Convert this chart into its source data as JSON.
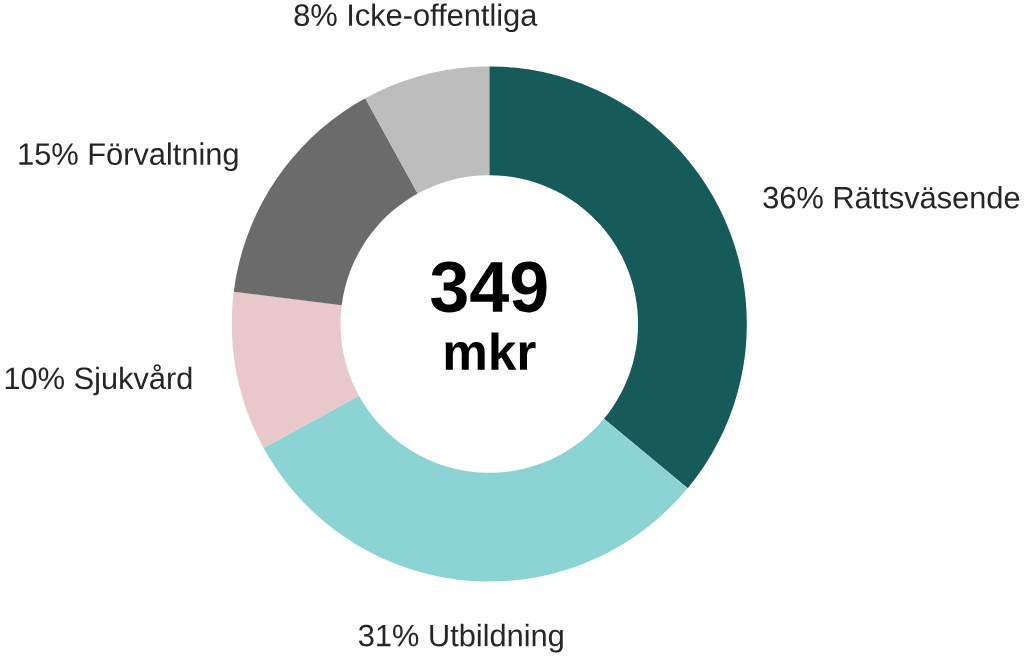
{
  "chart_data": {
    "type": "donut",
    "categories": [
      "Rättsväsende",
      "Utbildning",
      "Sjukvård",
      "Förvaltning",
      "Icke-offentliga"
    ],
    "values": [
      36,
      31,
      10,
      15,
      8
    ],
    "colors": [
      "#175a5a",
      "#8cd3d4",
      "#e8c8ca",
      "#6b6b6b",
      "#bdbdbd"
    ],
    "value_labels": [
      "36%",
      "31%",
      "10%",
      "15%",
      "8%"
    ],
    "annotations": [
      "349",
      "mkr"
    ]
  }
}
